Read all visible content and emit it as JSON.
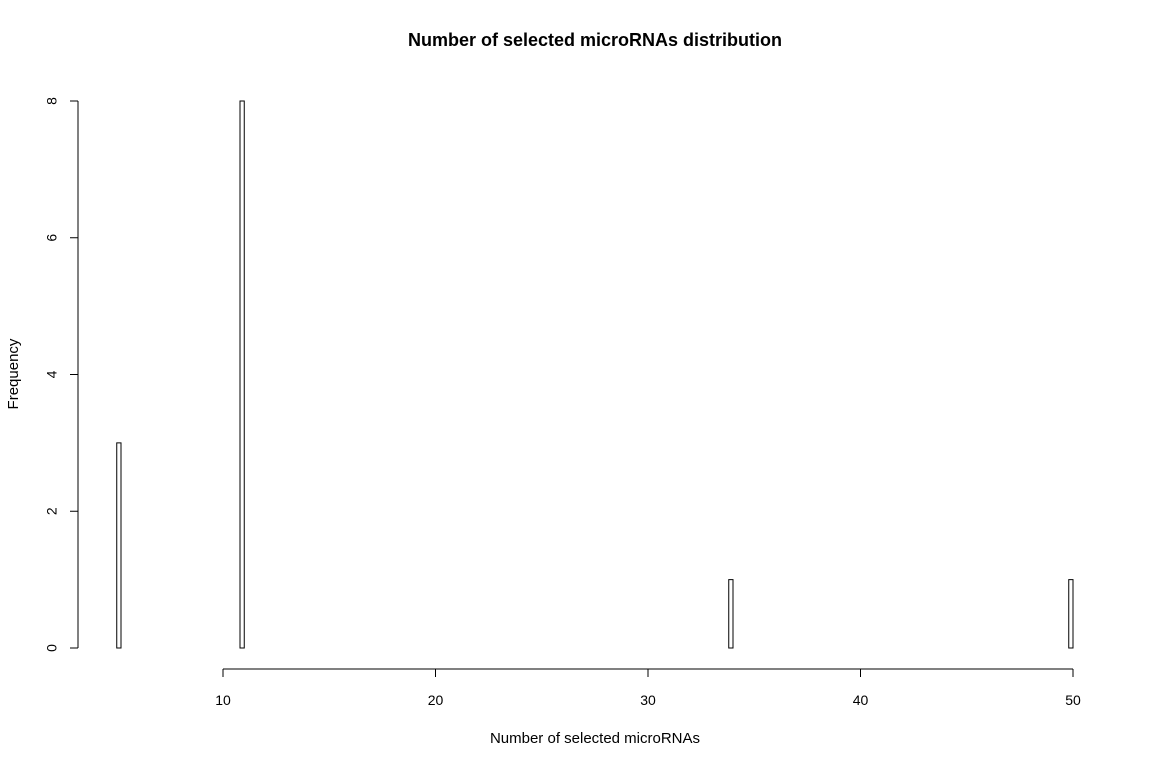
{
  "chart_data": {
    "type": "bar",
    "title": "Number of selected microRNAs distribution",
    "xlabel": "Number of selected microRNAs",
    "ylabel": "Frequency",
    "xlim": [
      5,
      50
    ],
    "ylim": [
      0,
      8
    ],
    "x_ticks": [
      10,
      20,
      30,
      40,
      50
    ],
    "y_ticks": [
      0,
      2,
      4,
      6,
      8
    ],
    "bin_width": 0.2,
    "bins": [
      {
        "x": 5,
        "count": 3
      },
      {
        "x": 10.8,
        "count": 8
      },
      {
        "x": 33.8,
        "count": 1
      },
      {
        "x": 49.8,
        "count": 1
      }
    ],
    "grid": false,
    "legend": "none"
  }
}
